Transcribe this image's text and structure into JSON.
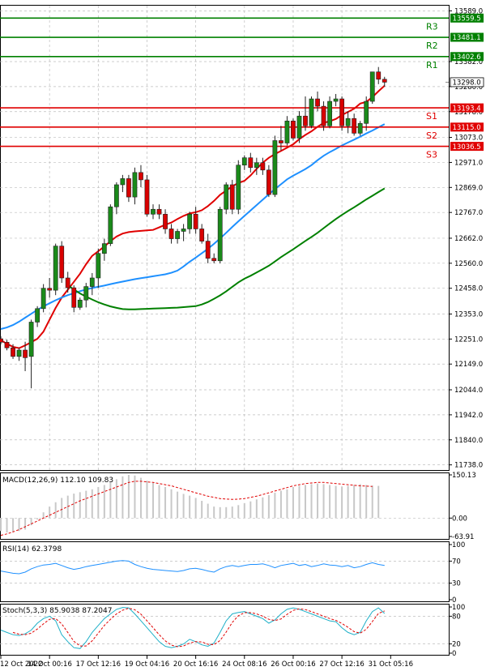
{
  "chart_data": {
    "type": "candlestick",
    "x_ticks": [
      "12 Oct 2022",
      "14 Oct 00:16",
      "17 Oct 12:16",
      "19 Oct 04:16",
      "20 Oct 16:16",
      "24 Oct 08:16",
      "26 Oct 00:16",
      "27 Oct 12:16",
      "31 Oct 05:16"
    ],
    "price_axis": {
      "ticks": [
        "13589.0",
        "13382.0",
        "13280.0",
        "13178.0",
        "13073.0",
        "12971.0",
        "12869.0",
        "12767.0",
        "12662.0",
        "12560.0",
        "12458.0",
        "12353.0",
        "12251.0",
        "12149.0",
        "12044.0",
        "11942.0",
        "11840.0",
        "11738.0"
      ],
      "range": [
        11717,
        13610
      ]
    },
    "levels": [
      {
        "name": "R3",
        "value": 13559.5,
        "label": "13559.5",
        "color": "#008000"
      },
      {
        "name": "R2",
        "value": 13481.1,
        "label": "13481.1",
        "color": "#008000"
      },
      {
        "name": "R1",
        "value": 13402.6,
        "label": "13402.6",
        "color": "#008000"
      },
      {
        "name": "S1",
        "value": 13193.4,
        "label": "13193.4",
        "color": "#e00000"
      },
      {
        "name": "S2",
        "value": 13115.0,
        "label": "13115.0",
        "color": "#e00000"
      },
      {
        "name": "S3",
        "value": 13036.5,
        "label": "13036.5",
        "color": "#e00000"
      }
    ],
    "current_price": {
      "value": 13298.0,
      "label": "13298.0"
    },
    "candles": [
      [
        12252,
        12262,
        12229,
        12238
      ],
      [
        12238,
        12248,
        12205,
        12215
      ],
      [
        12215,
        12230,
        12170,
        12180
      ],
      [
        12180,
        12215,
        12162,
        12206
      ],
      [
        12206,
        12240,
        12120,
        12175
      ],
      [
        12180,
        12330,
        12050,
        12320
      ],
      [
        12320,
        12385,
        12300,
        12375
      ],
      [
        12375,
        12475,
        12360,
        12458
      ],
      [
        12458,
        12500,
        12420,
        12450
      ],
      [
        12450,
        12640,
        12430,
        12630
      ],
      [
        12630,
        12650,
        12480,
        12500
      ],
      [
        12500,
        12525,
        12440,
        12460
      ],
      [
        12460,
        12470,
        12360,
        12380
      ],
      [
        12380,
        12420,
        12370,
        12410
      ],
      [
        12410,
        12480,
        12380,
        12465
      ],
      [
        12465,
        12520,
        12430,
        12500
      ],
      [
        12500,
        12620,
        12460,
        12600
      ],
      [
        12600,
        12660,
        12570,
        12640
      ],
      [
        12640,
        12800,
        12630,
        12790
      ],
      [
        12790,
        12890,
        12760,
        12880
      ],
      [
        12880,
        12920,
        12850,
        12905
      ],
      [
        12905,
        12920,
        12810,
        12830
      ],
      [
        12830,
        12950,
        12800,
        12930
      ],
      [
        12930,
        12960,
        12870,
        12900
      ],
      [
        12900,
        12920,
        12750,
        12760
      ],
      [
        12760,
        12800,
        12740,
        12780
      ],
      [
        12780,
        12800,
        12740,
        12760
      ],
      [
        12760,
        12780,
        12680,
        12700
      ],
      [
        12700,
        12720,
        12640,
        12660
      ],
      [
        12660,
        12700,
        12640,
        12690
      ],
      [
        12690,
        12720,
        12650,
        12700
      ],
      [
        12700,
        12770,
        12680,
        12760
      ],
      [
        12760,
        12790,
        12680,
        12700
      ],
      [
        12700,
        12720,
        12640,
        12650
      ],
      [
        12650,
        12680,
        12560,
        12580
      ],
      [
        12580,
        12600,
        12560,
        12570
      ],
      [
        12570,
        12790,
        12560,
        12780
      ],
      [
        12780,
        12890,
        12760,
        12880
      ],
      [
        12880,
        12900,
        12760,
        12780
      ],
      [
        12780,
        12980,
        12760,
        12960
      ],
      [
        12960,
        13000,
        12940,
        12990
      ],
      [
        12990,
        13010,
        12930,
        12950
      ],
      [
        12950,
        12990,
        12920,
        12970
      ],
      [
        12970,
        12990,
        12920,
        12940
      ],
      [
        12940,
        12960,
        12830,
        12840
      ],
      [
        12840,
        13080,
        12830,
        13060
      ],
      [
        13060,
        13120,
        13020,
        13050
      ],
      [
        13050,
        13160,
        13040,
        13140
      ],
      [
        13140,
        13150,
        13060,
        13070
      ],
      [
        13070,
        13180,
        13050,
        13160
      ],
      [
        13160,
        13240,
        13100,
        13120
      ],
      [
        13120,
        13240,
        13110,
        13230
      ],
      [
        13230,
        13260,
        13180,
        13200
      ],
      [
        13200,
        13220,
        13100,
        13120
      ],
      [
        13120,
        13240,
        13110,
        13220
      ],
      [
        13220,
        13250,
        13200,
        13230
      ],
      [
        13230,
        13240,
        13100,
        13120
      ],
      [
        13120,
        13180,
        13090,
        13150
      ],
      [
        13150,
        13170,
        13080,
        13090
      ],
      [
        13090,
        13140,
        13080,
        13130
      ],
      [
        13130,
        13240,
        13100,
        13220
      ],
      [
        13220,
        13340,
        13210,
        13340
      ],
      [
        13340,
        13360,
        13290,
        13310
      ],
      [
        13310,
        13320,
        13280,
        13298
      ]
    ],
    "series": [
      {
        "name": "",
        "color": "#e00000",
        "values": [
          12246,
          12232,
          12219,
          12214,
          12225,
          12238,
          12252,
          12281,
          12330,
          12378,
          12420,
          12452,
          12484,
          12517,
          12556,
          12590,
          12609,
          12628,
          12650,
          12669,
          12681,
          12687,
          12690,
          12692,
          12694,
          12696,
          12706,
          12717,
          12726,
          12740,
          12753,
          12763,
          12768,
          12776,
          12793,
          12814,
          12839,
          12856,
          12874,
          12887,
          12896,
          12918,
          12945,
          12970,
          12990,
          13005,
          13018,
          13031,
          13045,
          13066,
          13083,
          13098,
          13116,
          13132,
          13139,
          13148,
          13164,
          13177,
          13190,
          13211,
          13218,
          13237,
          13261,
          13284
        ]
      },
      {
        "name": "",
        "color": "#1e90ff",
        "values": [
          12292,
          12298,
          12308,
          12322,
          12338,
          12354,
          12370,
          12384,
          12397,
          12409,
          12420,
          12430,
          12438,
          12446,
          12453,
          12459,
          12464,
          12469,
          12475,
          12480,
          12485,
          12490,
          12495,
          12499,
          12503,
          12507,
          12511,
          12515,
          12521,
          12530,
          12547,
          12566,
          12583,
          12601,
          12619,
          12639,
          12661,
          12684,
          12708,
          12731,
          12753,
          12775,
          12797,
          12819,
          12841,
          12862,
          12882,
          12902,
          12917,
          12930,
          12944,
          12960,
          12980,
          12998,
          13013,
          13026,
          13040,
          13052,
          13064,
          13076,
          13089,
          13101,
          13114,
          13127
        ]
      },
      {
        "name": "",
        "color": "#008000",
        "values": [
          12470,
          12453,
          12437,
          12424,
          12412,
          12401,
          12392,
          12384,
          12378,
          12373,
          12372,
          12372,
          12373,
          12374,
          12375,
          12376,
          12377,
          12378,
          12379,
          12381,
          12383,
          12385,
          12392,
          12402,
          12415,
          12429,
          12445,
          12464,
          12482,
          12497,
          12509,
          12522,
          12536,
          12550,
          12567,
          12585,
          12601,
          12617,
          12634,
          12651,
          12667,
          12684,
          12703,
          12722,
          12740,
          12757,
          12773,
          12788,
          12804,
          12820,
          12835,
          12850,
          12865
        ]
      }
    ],
    "macd": {
      "label": "MACD(12,26,9) 112.10 109.83",
      "ticks": [
        "150.13",
        "0.00",
        "-63.91"
      ],
      "range": [
        -63.91,
        150.13
      ],
      "hist": [
        -45,
        -50,
        -48,
        -45,
        -40,
        -25,
        -5,
        20,
        40,
        55,
        70,
        78,
        85,
        90,
        95,
        100,
        108,
        115,
        125,
        135,
        145,
        150,
        148,
        140,
        130,
        122,
        115,
        108,
        100,
        92,
        84,
        78,
        70,
        60,
        50,
        40,
        38,
        38,
        40,
        45,
        52,
        58,
        65,
        72,
        80,
        88,
        95,
        100,
        108,
        112,
        115,
        118,
        120,
        118,
        115,
        112,
        110,
        112,
        115,
        118,
        115,
        113,
        112
      ],
      "signal": [
        -60,
        -55,
        -48,
        -40,
        -30,
        -20,
        -10,
        0,
        10,
        20,
        30,
        40,
        50,
        60,
        68,
        76,
        84,
        92,
        100,
        108,
        116,
        124,
        128,
        128,
        126,
        124,
        120,
        116,
        112,
        106,
        100,
        94,
        88,
        82,
        76,
        72,
        68,
        66,
        65,
        66,
        68,
        72,
        76,
        82,
        88,
        94,
        100,
        106,
        112,
        116,
        120,
        122,
        124,
        124,
        122,
        120,
        118,
        116,
        114,
        112,
        111,
        110
      ]
    },
    "rsi": {
      "label": "RSI(14) 62.3798",
      "ticks": [
        "100",
        "70",
        "30",
        "0"
      ],
      "levels": [
        70,
        30
      ],
      "values": [
        52,
        50,
        48,
        47,
        50,
        56,
        60,
        63,
        64,
        66,
        62,
        58,
        55,
        57,
        60,
        62,
        64,
        66,
        68,
        70,
        71,
        70,
        64,
        60,
        57,
        55,
        54,
        53,
        52,
        51,
        53,
        56,
        57,
        55,
        52,
        50,
        56,
        60,
        62,
        60,
        62,
        64,
        64,
        65,
        62,
        58,
        62,
        64,
        66,
        62,
        64,
        60,
        62,
        65,
        63,
        62,
        60,
        62,
        58,
        60,
        64,
        67,
        64,
        62
      ]
    },
    "stoch": {
      "label": "Stoch(5,3,3) 85.9038 87.2047",
      "ticks": [
        "100",
        "80",
        "20",
        "0"
      ],
      "levels": [
        80,
        20
      ],
      "k": [
        50,
        45,
        40,
        38,
        42,
        50,
        65,
        75,
        80,
        70,
        40,
        25,
        12,
        10,
        25,
        45,
        60,
        75,
        85,
        95,
        99,
        98,
        85,
        70,
        55,
        40,
        25,
        15,
        12,
        15,
        20,
        30,
        25,
        18,
        15,
        22,
        45,
        70,
        85,
        88,
        90,
        85,
        80,
        75,
        65,
        72,
        85,
        95,
        98,
        95,
        90,
        85,
        80,
        75,
        70,
        68,
        55,
        45,
        40,
        45,
        70,
        90,
        98,
        86
      ]
    }
  }
}
